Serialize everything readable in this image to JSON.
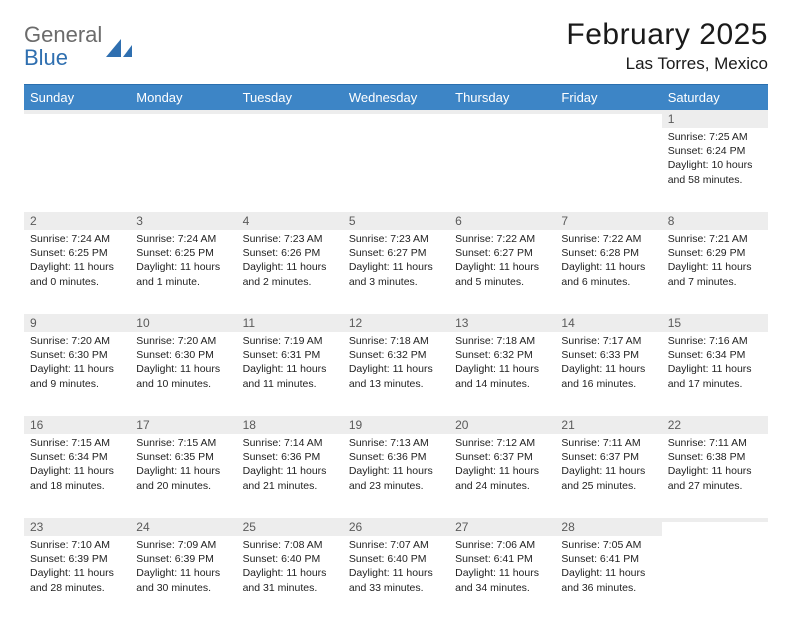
{
  "brand": {
    "name_part1": "General",
    "name_part2": "Blue",
    "text_color_gray": "#6b6b6b",
    "text_color_blue": "#2f6fb0",
    "icon_color": "#2f6fb0"
  },
  "header": {
    "month_title": "February 2025",
    "location": "Las Torres, Mexico"
  },
  "styling": {
    "header_bg": "#3d85c6",
    "header_text": "#ffffff",
    "daynum_bg": "#ededed",
    "daynum_text": "#5a5a5a",
    "body_text": "#222222",
    "rule_color": "#2b6fae",
    "page_bg": "#ffffff",
    "day_header_fontsize": 13,
    "daynum_fontsize": 12,
    "cell_fontsize": 10.5,
    "title_fontsize": 30,
    "location_fontsize": 17
  },
  "day_headers": [
    "Sunday",
    "Monday",
    "Tuesday",
    "Wednesday",
    "Thursday",
    "Friday",
    "Saturday"
  ],
  "weeks": [
    [
      {
        "day": "",
        "sunrise": "",
        "sunset": "",
        "daylight": ""
      },
      {
        "day": "",
        "sunrise": "",
        "sunset": "",
        "daylight": ""
      },
      {
        "day": "",
        "sunrise": "",
        "sunset": "",
        "daylight": ""
      },
      {
        "day": "",
        "sunrise": "",
        "sunset": "",
        "daylight": ""
      },
      {
        "day": "",
        "sunrise": "",
        "sunset": "",
        "daylight": ""
      },
      {
        "day": "",
        "sunrise": "",
        "sunset": "",
        "daylight": ""
      },
      {
        "day": "1",
        "sunrise": "Sunrise: 7:25 AM",
        "sunset": "Sunset: 6:24 PM",
        "daylight": "Daylight: 10 hours and 58 minutes."
      }
    ],
    [
      {
        "day": "2",
        "sunrise": "Sunrise: 7:24 AM",
        "sunset": "Sunset: 6:25 PM",
        "daylight": "Daylight: 11 hours and 0 minutes."
      },
      {
        "day": "3",
        "sunrise": "Sunrise: 7:24 AM",
        "sunset": "Sunset: 6:25 PM",
        "daylight": "Daylight: 11 hours and 1 minute."
      },
      {
        "day": "4",
        "sunrise": "Sunrise: 7:23 AM",
        "sunset": "Sunset: 6:26 PM",
        "daylight": "Daylight: 11 hours and 2 minutes."
      },
      {
        "day": "5",
        "sunrise": "Sunrise: 7:23 AM",
        "sunset": "Sunset: 6:27 PM",
        "daylight": "Daylight: 11 hours and 3 minutes."
      },
      {
        "day": "6",
        "sunrise": "Sunrise: 7:22 AM",
        "sunset": "Sunset: 6:27 PM",
        "daylight": "Daylight: 11 hours and 5 minutes."
      },
      {
        "day": "7",
        "sunrise": "Sunrise: 7:22 AM",
        "sunset": "Sunset: 6:28 PM",
        "daylight": "Daylight: 11 hours and 6 minutes."
      },
      {
        "day": "8",
        "sunrise": "Sunrise: 7:21 AM",
        "sunset": "Sunset: 6:29 PM",
        "daylight": "Daylight: 11 hours and 7 minutes."
      }
    ],
    [
      {
        "day": "9",
        "sunrise": "Sunrise: 7:20 AM",
        "sunset": "Sunset: 6:30 PM",
        "daylight": "Daylight: 11 hours and 9 minutes."
      },
      {
        "day": "10",
        "sunrise": "Sunrise: 7:20 AM",
        "sunset": "Sunset: 6:30 PM",
        "daylight": "Daylight: 11 hours and 10 minutes."
      },
      {
        "day": "11",
        "sunrise": "Sunrise: 7:19 AM",
        "sunset": "Sunset: 6:31 PM",
        "daylight": "Daylight: 11 hours and 11 minutes."
      },
      {
        "day": "12",
        "sunrise": "Sunrise: 7:18 AM",
        "sunset": "Sunset: 6:32 PM",
        "daylight": "Daylight: 11 hours and 13 minutes."
      },
      {
        "day": "13",
        "sunrise": "Sunrise: 7:18 AM",
        "sunset": "Sunset: 6:32 PM",
        "daylight": "Daylight: 11 hours and 14 minutes."
      },
      {
        "day": "14",
        "sunrise": "Sunrise: 7:17 AM",
        "sunset": "Sunset: 6:33 PM",
        "daylight": "Daylight: 11 hours and 16 minutes."
      },
      {
        "day": "15",
        "sunrise": "Sunrise: 7:16 AM",
        "sunset": "Sunset: 6:34 PM",
        "daylight": "Daylight: 11 hours and 17 minutes."
      }
    ],
    [
      {
        "day": "16",
        "sunrise": "Sunrise: 7:15 AM",
        "sunset": "Sunset: 6:34 PM",
        "daylight": "Daylight: 11 hours and 18 minutes."
      },
      {
        "day": "17",
        "sunrise": "Sunrise: 7:15 AM",
        "sunset": "Sunset: 6:35 PM",
        "daylight": "Daylight: 11 hours and 20 minutes."
      },
      {
        "day": "18",
        "sunrise": "Sunrise: 7:14 AM",
        "sunset": "Sunset: 6:36 PM",
        "daylight": "Daylight: 11 hours and 21 minutes."
      },
      {
        "day": "19",
        "sunrise": "Sunrise: 7:13 AM",
        "sunset": "Sunset: 6:36 PM",
        "daylight": "Daylight: 11 hours and 23 minutes."
      },
      {
        "day": "20",
        "sunrise": "Sunrise: 7:12 AM",
        "sunset": "Sunset: 6:37 PM",
        "daylight": "Daylight: 11 hours and 24 minutes."
      },
      {
        "day": "21",
        "sunrise": "Sunrise: 7:11 AM",
        "sunset": "Sunset: 6:37 PM",
        "daylight": "Daylight: 11 hours and 25 minutes."
      },
      {
        "day": "22",
        "sunrise": "Sunrise: 7:11 AM",
        "sunset": "Sunset: 6:38 PM",
        "daylight": "Daylight: 11 hours and 27 minutes."
      }
    ],
    [
      {
        "day": "23",
        "sunrise": "Sunrise: 7:10 AM",
        "sunset": "Sunset: 6:39 PM",
        "daylight": "Daylight: 11 hours and 28 minutes."
      },
      {
        "day": "24",
        "sunrise": "Sunrise: 7:09 AM",
        "sunset": "Sunset: 6:39 PM",
        "daylight": "Daylight: 11 hours and 30 minutes."
      },
      {
        "day": "25",
        "sunrise": "Sunrise: 7:08 AM",
        "sunset": "Sunset: 6:40 PM",
        "daylight": "Daylight: 11 hours and 31 minutes."
      },
      {
        "day": "26",
        "sunrise": "Sunrise: 7:07 AM",
        "sunset": "Sunset: 6:40 PM",
        "daylight": "Daylight: 11 hours and 33 minutes."
      },
      {
        "day": "27",
        "sunrise": "Sunrise: 7:06 AM",
        "sunset": "Sunset: 6:41 PM",
        "daylight": "Daylight: 11 hours and 34 minutes."
      },
      {
        "day": "28",
        "sunrise": "Sunrise: 7:05 AM",
        "sunset": "Sunset: 6:41 PM",
        "daylight": "Daylight: 11 hours and 36 minutes."
      },
      {
        "day": "",
        "sunrise": "",
        "sunset": "",
        "daylight": ""
      }
    ]
  ]
}
